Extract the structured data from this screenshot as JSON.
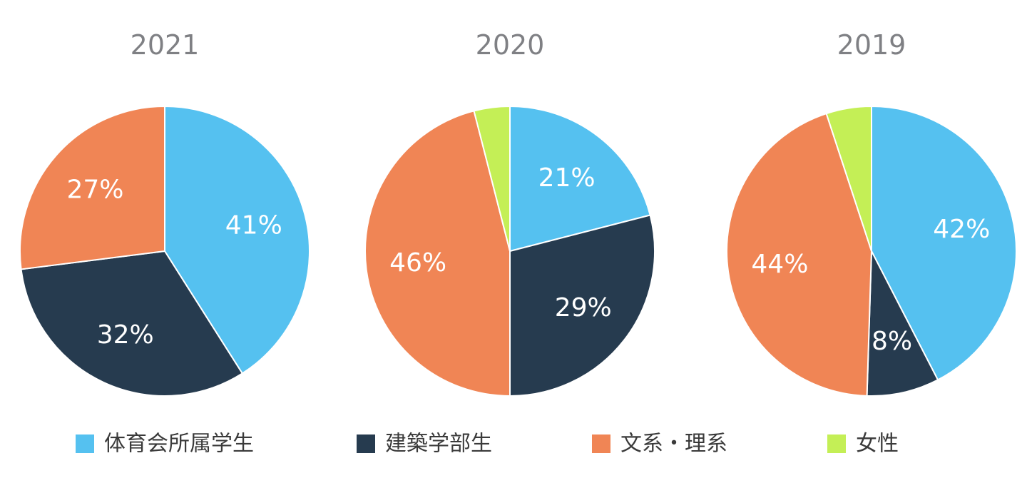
{
  "chart_data": [
    {
      "type": "pie",
      "title": "2021",
      "slices": [
        {
          "category": "体育会所属学生",
          "value": 41,
          "label": "41%"
        },
        {
          "category": "建築学部生",
          "value": 32,
          "label": "32%"
        },
        {
          "category": "文系・理系",
          "value": 27,
          "label": "27%"
        }
      ]
    },
    {
      "type": "pie",
      "title": "2020",
      "slices": [
        {
          "category": "体育会所属学生",
          "value": 21,
          "label": "21%"
        },
        {
          "category": "建築学部生",
          "value": 29,
          "label": "29%"
        },
        {
          "category": "文系・理系",
          "value": 46,
          "label": "46%"
        },
        {
          "category": "女性",
          "value": 4,
          "label": ""
        }
      ]
    },
    {
      "type": "pie",
      "title": "2019",
      "slices": [
        {
          "category": "体育会所属学生",
          "value": 42,
          "label": "42%"
        },
        {
          "category": "建築学部生",
          "value": 8,
          "label": "8%"
        },
        {
          "category": "文系・理系",
          "value": 44,
          "label": "44%"
        },
        {
          "category": "女性",
          "value": 5,
          "label": ""
        }
      ]
    }
  ],
  "legend": {
    "placement": "bottom",
    "items": [
      {
        "label": "体育会所属学生",
        "color": "#55c1f0"
      },
      {
        "label": "建築学部生",
        "color": "#263b4f"
      },
      {
        "label": "文系・理系",
        "color": "#f08555"
      },
      {
        "label": "女性",
        "color": "#c4ef56"
      }
    ]
  },
  "colors": {
    "体育会所属学生": "#55c1f0",
    "建築学部生": "#263b4f",
    "文系・理系": "#f08555",
    "女性": "#c4ef56",
    "title": "#7f8084",
    "label": "#ffffff",
    "slice_border": "#ffffff"
  }
}
